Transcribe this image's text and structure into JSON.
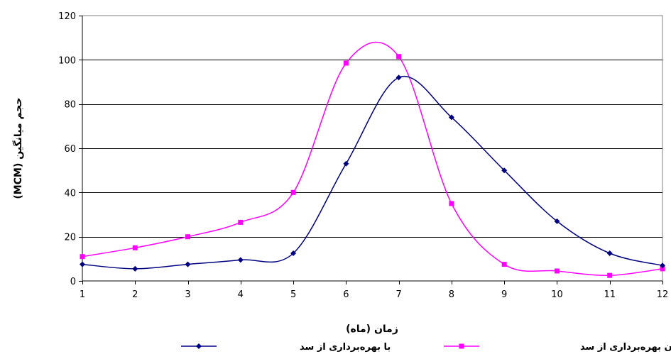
{
  "chart_data": {
    "type": "line",
    "title": "",
    "xlabel": "زمان (ماه)",
    "ylabel": "حجم میانگین (MCM)",
    "xlim": [
      1,
      12
    ],
    "ylim": [
      0,
      120
    ],
    "xticks": [
      1,
      2,
      3,
      4,
      5,
      6,
      7,
      8,
      9,
      10,
      11,
      12
    ],
    "yticks": [
      0,
      20,
      40,
      60,
      80,
      100,
      120
    ],
    "grid": "horizontal",
    "legend_position": "bottom",
    "series": [
      {
        "name": "با بهره‌برداری از سد",
        "color": "#000080",
        "marker": "diamond",
        "x": [
          1,
          2,
          3,
          4,
          5,
          6,
          7,
          8,
          9,
          10,
          11,
          12
        ],
        "values": [
          7.5,
          5.5,
          7.5,
          9.5,
          12.5,
          53,
          92,
          74,
          50,
          27,
          12.5,
          7
        ]
      },
      {
        "name": "بدون بهره‌برداری از سد",
        "color": "#ff00ff",
        "marker": "square",
        "x": [
          1,
          2,
          3,
          4,
          5,
          6,
          7,
          8,
          9,
          10,
          11,
          12
        ],
        "values": [
          11,
          15,
          20,
          26.5,
          40,
          98.5,
          101.5,
          35,
          7.5,
          4.5,
          2.5,
          5.5
        ]
      }
    ]
  }
}
